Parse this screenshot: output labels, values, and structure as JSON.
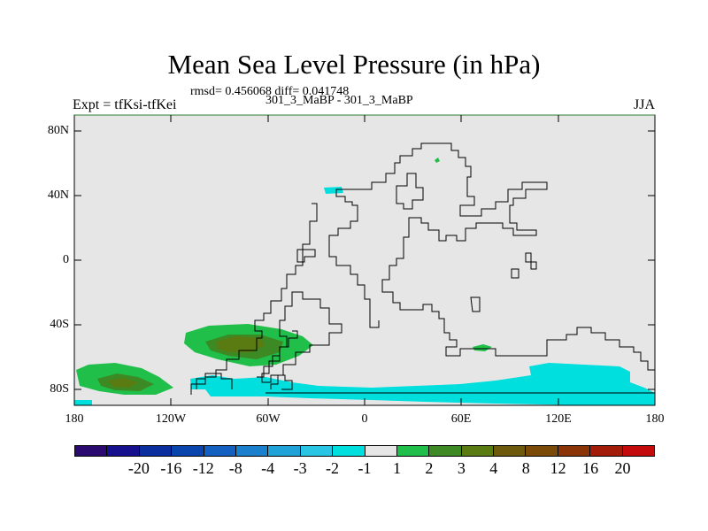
{
  "title": "Mean Sea Level Pressure (in hPa)",
  "stats": "rmsd= 0.456068 diff= 0.041748",
  "subtitle": "301_3_MaBP - 301_3_MaBP",
  "left_label": "Expt = tfKsi-tfKei",
  "right_label": "JJA",
  "map": {
    "projection": "cylindrical-equidistant",
    "lon_range": [
      -180,
      180
    ],
    "lat_range": [
      -90,
      90
    ],
    "y_ticks": [
      "80N",
      "40N",
      "0",
      "40S",
      "80S"
    ],
    "x_ticks": [
      "180",
      "120W",
      "60W",
      "0",
      "60E",
      "120E",
      "180"
    ],
    "background_color": "#e6e6e6",
    "coastline_color": "#000000"
  },
  "colorbar": {
    "colors": [
      "#2a0a6e",
      "#16108f",
      "#0b2e9e",
      "#0a45ad",
      "#1460c0",
      "#1a7fcc",
      "#1fa2d8",
      "#28c6e4",
      "#00dede",
      "#e6e6e6",
      "#1fbf4a",
      "#3d8a25",
      "#5a7a12",
      "#6e5a0c",
      "#7a4a08",
      "#8a3408",
      "#a31c08",
      "#c40a0a"
    ],
    "labels": [
      "-20",
      "-16",
      "-12",
      "-8",
      "-4",
      "-3",
      "-2",
      "-1",
      "1",
      "2",
      "3",
      "4",
      "8",
      "12",
      "16",
      "20"
    ]
  }
}
